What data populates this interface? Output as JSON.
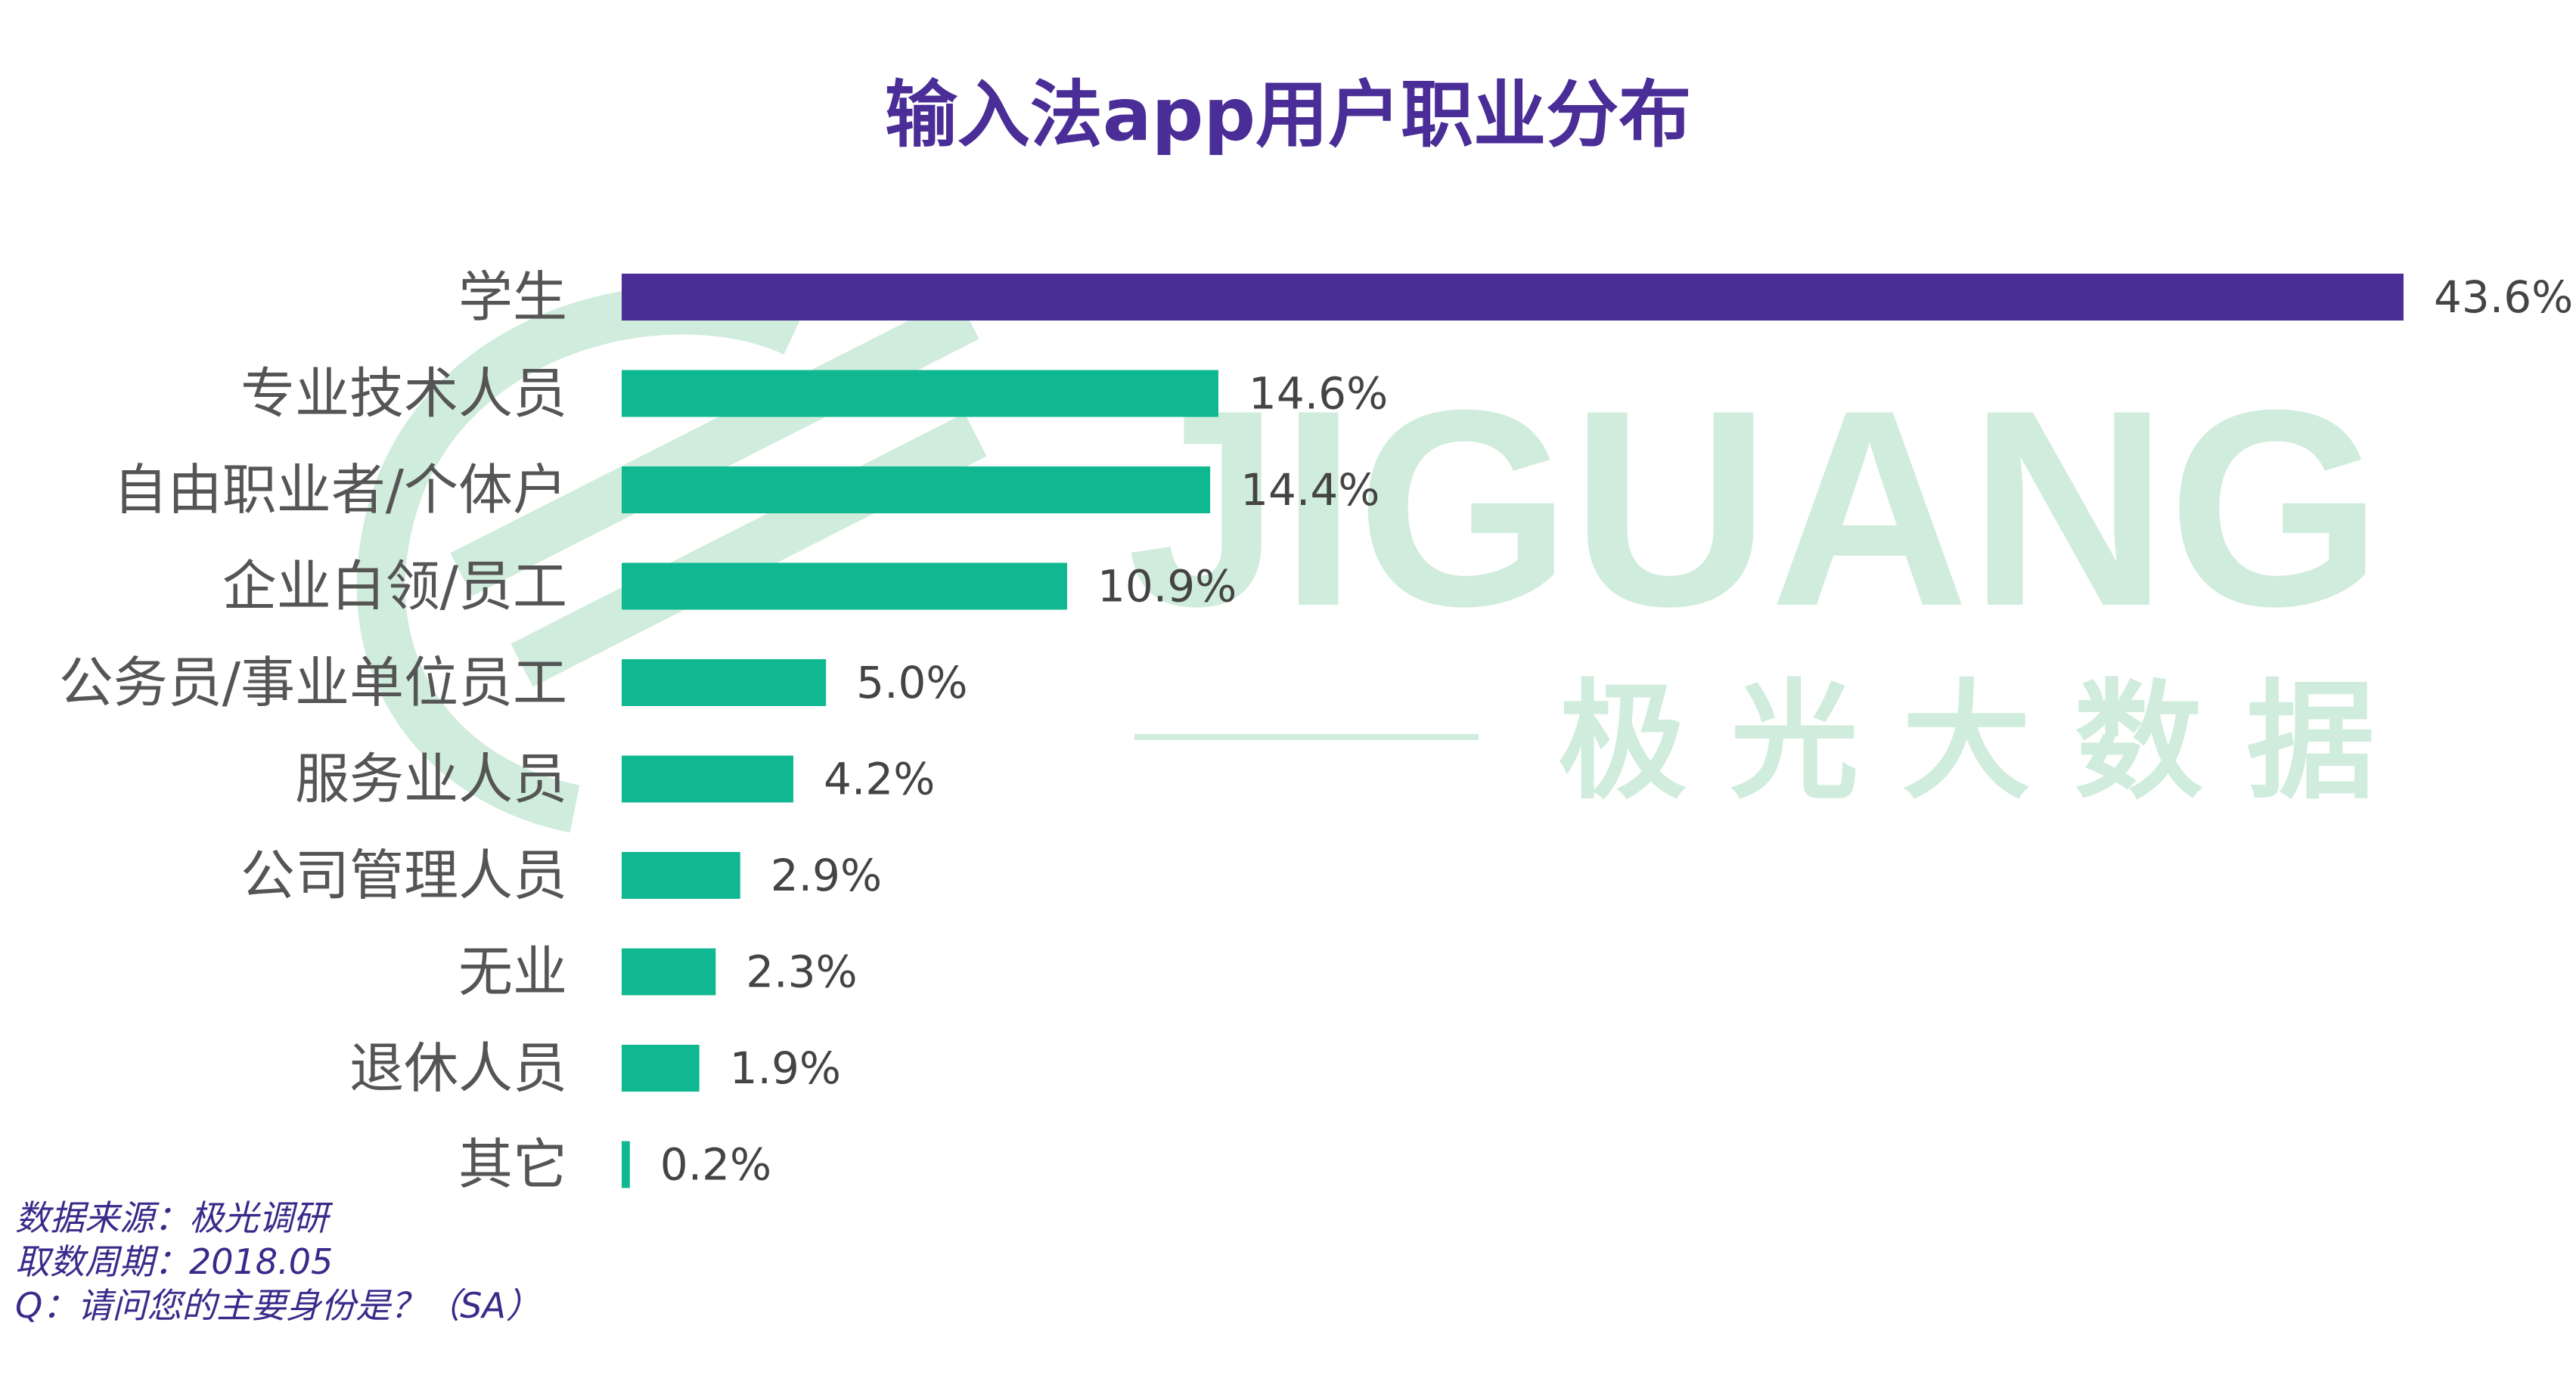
{
  "colors": {
    "title": "#4a2d96",
    "highlight_bar": "#4a2d96",
    "bar": "#0fb890",
    "category_label": "#555555",
    "value_label": "#444444",
    "footnote": "#3b2a8a",
    "watermark": "#d0ecdc"
  },
  "watermark": {
    "logo_text": "JIGUANG",
    "sub_text": "极 光 大 数 据"
  },
  "chart_data": {
    "type": "bar",
    "orientation": "horizontal",
    "title": "输入法app用户职业分布",
    "categories": [
      "学生",
      "专业技术人员",
      "自由职业者/个体户",
      "企业白领/员工",
      "公务员/事业单位员工",
      "服务业人员",
      "公司管理人员",
      "无业",
      "退休人员",
      "其它"
    ],
    "values": [
      43.6,
      14.6,
      14.4,
      10.9,
      5.0,
      4.2,
      2.9,
      2.3,
      1.9,
      0.2
    ],
    "value_labels": [
      "43.6%",
      "14.6%",
      "14.4%",
      "10.9%",
      "5.0%",
      "4.2%",
      "2.9%",
      "2.3%",
      "1.9%",
      "0.2%"
    ],
    "unit": "%",
    "highlight_index": 0,
    "xlim": [
      0,
      43.6
    ],
    "grid": false,
    "legend": "none"
  },
  "footnotes": {
    "source": "数据来源：极光调研",
    "period": "取数周期：2018.05",
    "question": "Q：请问您的主要身份是？（SA）"
  }
}
